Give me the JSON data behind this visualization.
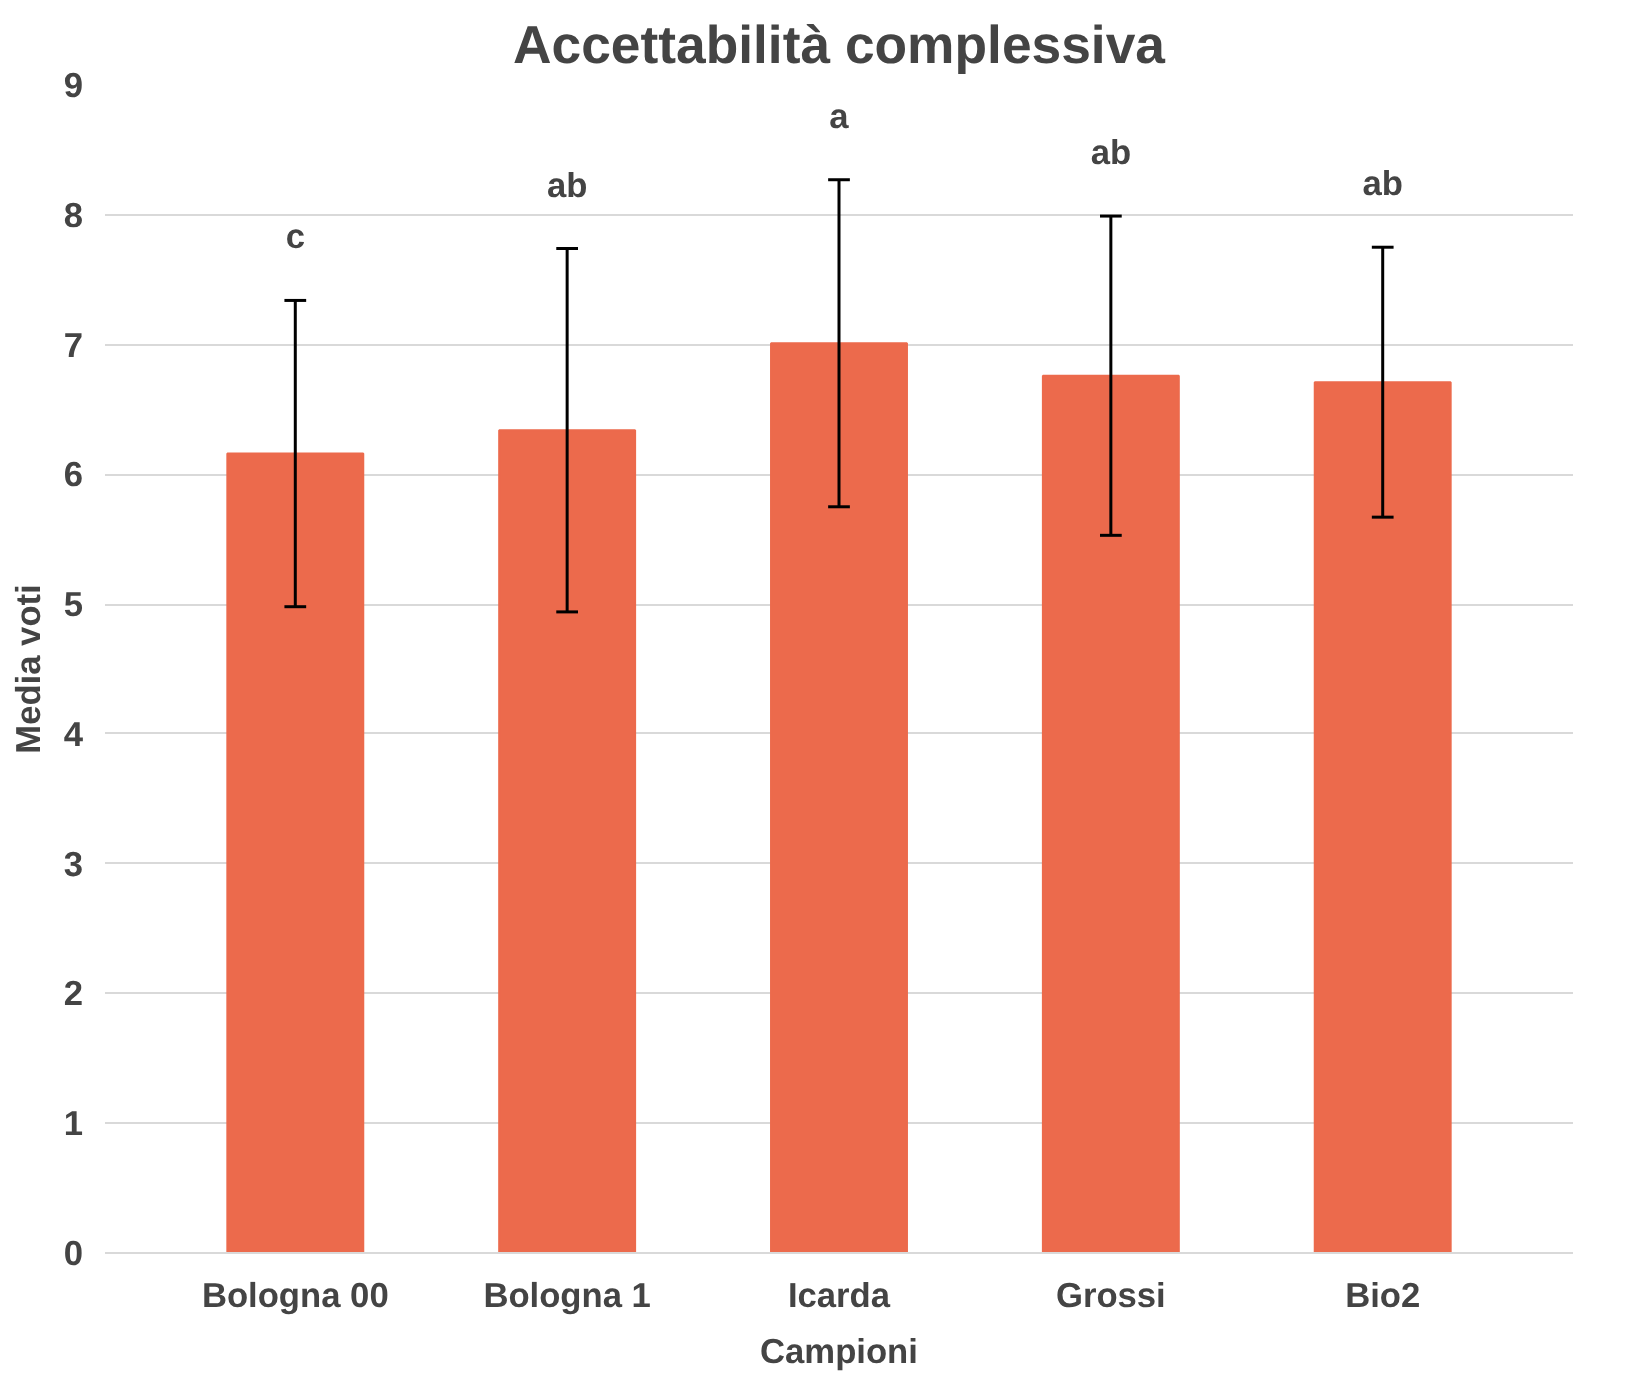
{
  "chart_data": {
    "type": "bar",
    "title": "Accettabilità complessiva",
    "xlabel": "Campioni",
    "ylabel": "Media voti",
    "categories": [
      "Bologna 00",
      "Bologna 1",
      "Icarda",
      "Grossi",
      "Bio2"
    ],
    "values": [
      6.16,
      6.34,
      7.01,
      6.76,
      6.71
    ],
    "errors": [
      1.18,
      1.4,
      1.26,
      1.23,
      1.04
    ],
    "color": "#ec6a4c",
    "ylim": [
      0,
      9
    ],
    "yticks": [
      0,
      1,
      2,
      3,
      4,
      5,
      6,
      7,
      8,
      9
    ],
    "grid": "y",
    "annotations": [
      "c",
      "ab",
      "a",
      "ab",
      "ab"
    ]
  }
}
